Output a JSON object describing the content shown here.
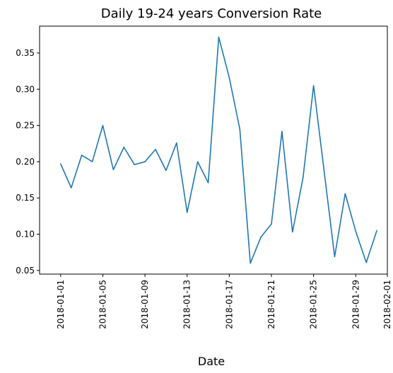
{
  "chart_data": {
    "type": "line",
    "title": "Daily 19-24 years Conversion Rate",
    "xlabel": "Date",
    "ylabel": "",
    "x_start": "2018-01-01",
    "x": [
      "2018-01-01",
      "2018-01-02",
      "2018-01-03",
      "2018-01-04",
      "2018-01-05",
      "2018-01-06",
      "2018-01-07",
      "2018-01-08",
      "2018-01-09",
      "2018-01-10",
      "2018-01-11",
      "2018-01-12",
      "2018-01-13",
      "2018-01-14",
      "2018-01-15",
      "2018-01-16",
      "2018-01-17",
      "2018-01-18",
      "2018-01-19",
      "2018-01-20",
      "2018-01-21",
      "2018-01-22",
      "2018-01-23",
      "2018-01-24",
      "2018-01-25",
      "2018-01-26",
      "2018-01-27",
      "2018-01-28",
      "2018-01-29",
      "2018-01-30",
      "2018-01-31"
    ],
    "series": [
      {
        "color": "#1f77b4",
        "values": [
          0.197,
          0.164,
          0.209,
          0.2,
          0.25,
          0.189,
          0.22,
          0.196,
          0.2,
          0.217,
          0.188,
          0.226,
          0.13,
          0.2,
          0.171,
          0.372,
          0.316,
          0.245,
          0.06,
          0.096,
          0.114,
          0.242,
          0.103,
          0.178,
          0.305,
          0.187,
          0.069,
          0.156,
          0.104,
          0.061,
          0.105
        ]
      }
    ],
    "xlim": [
      "2017-12-30",
      "2018-02-01"
    ],
    "ylim": [
      0.045,
      0.387
    ],
    "x_ticks": [
      "2018-01-01",
      "2018-01-05",
      "2018-01-09",
      "2018-01-13",
      "2018-01-17",
      "2018-01-21",
      "2018-01-25",
      "2018-01-29",
      "2018-02-01"
    ],
    "y_ticks": [
      "0.05",
      "0.10",
      "0.15",
      "0.20",
      "0.25",
      "0.30",
      "0.35"
    ],
    "grid": false,
    "legend": "none"
  }
}
